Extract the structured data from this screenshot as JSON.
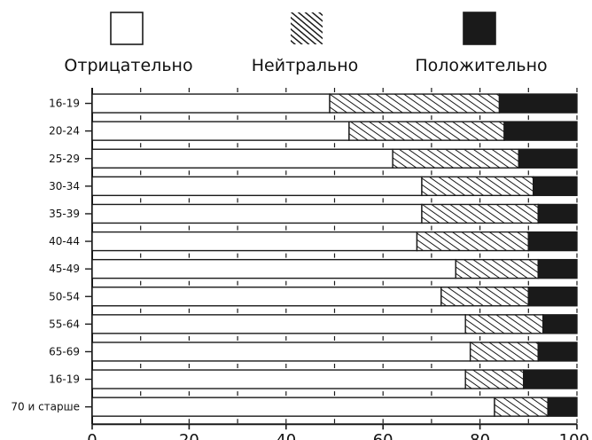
{
  "chart_data": {
    "type": "bar",
    "orientation": "horizontal",
    "stacked": true,
    "categories": [
      "16-19",
      "20-24",
      "25-29",
      "30-34",
      "35-39",
      "40-44",
      "45-49",
      "50-54",
      "55-64",
      "65-69",
      "16-19",
      "70 и старше"
    ],
    "series": [
      {
        "name": "Отрицательно",
        "values": [
          49,
          53,
          62,
          68,
          68,
          67,
          75,
          72,
          77,
          78,
          77,
          83
        ],
        "color": "#ffffff",
        "pattern": "none"
      },
      {
        "name": "Нейтрально",
        "values": [
          35,
          32,
          26,
          23,
          24,
          23,
          17,
          18,
          16,
          14,
          12,
          11
        ],
        "color": "#1a1a1a",
        "pattern": "hatch"
      },
      {
        "name": "Положительно",
        "values": [
          16,
          15,
          12,
          9,
          8,
          10,
          8,
          10,
          7,
          8,
          11,
          6
        ],
        "color": "#1a1a1a",
        "pattern": "solid"
      }
    ],
    "xlim": [
      0,
      100
    ],
    "xticks": [
      0,
      20,
      40,
      60,
      80,
      100
    ],
    "legend_position": "top",
    "grid": false
  }
}
